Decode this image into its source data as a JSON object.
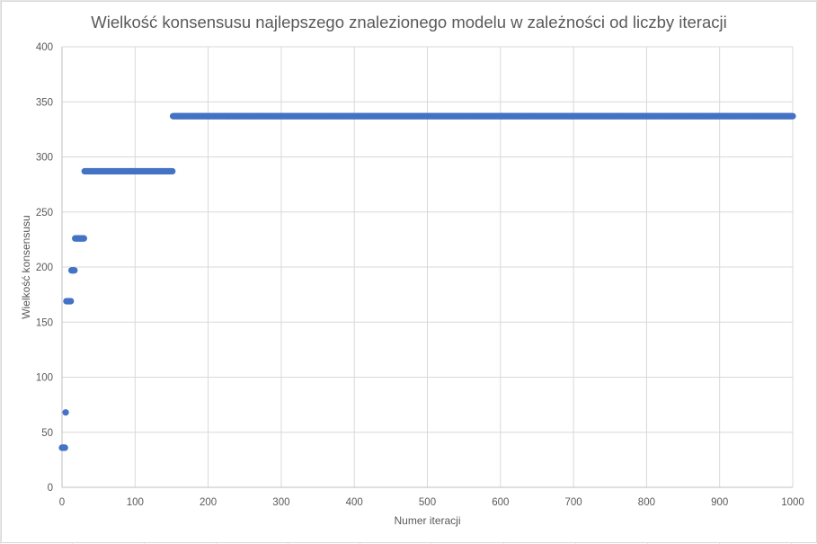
{
  "chart_data": {
    "type": "scatter",
    "title": "Wielkość konsensusu najlepszego znalezionego modelu w zależności od liczby iteracji",
    "xlabel": "Numer iteracji",
    "ylabel": "Wielkość konsensusu",
    "xlim": [
      0,
      1000
    ],
    "ylim": [
      0,
      400
    ],
    "xticks": [
      0,
      100,
      200,
      300,
      400,
      500,
      600,
      700,
      800,
      900,
      1000
    ],
    "yticks": [
      0,
      50,
      100,
      150,
      200,
      250,
      300,
      350,
      400
    ],
    "grid": true,
    "legend": "none",
    "marker_color": "#4472c4",
    "series": [
      {
        "segments": [
          {
            "x_from": 0,
            "x_to": 5,
            "y": 36
          },
          {
            "x_from": 5,
            "x_to": 6,
            "y": 68
          },
          {
            "x_from": 6,
            "x_to": 13,
            "y": 169
          },
          {
            "x_from": 13,
            "x_to": 18,
            "y": 197
          },
          {
            "x_from": 18,
            "x_to": 31,
            "y": 226
          },
          {
            "x_from": 31,
            "x_to": 152,
            "y": 287
          },
          {
            "x_from": 152,
            "x_to": 1000,
            "y": 337
          }
        ]
      }
    ]
  }
}
